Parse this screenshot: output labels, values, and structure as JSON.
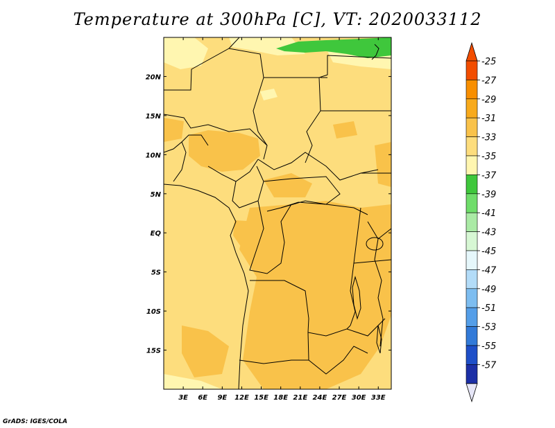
{
  "title": "Temperature at 300hPa [C], VT: 2020033112",
  "credit": "GrADS: IGES/COLA",
  "chart_data": {
    "type": "heatmap",
    "title": "Temperature at 300hPa [C], VT: 2020033112",
    "x_axis": {
      "range": [
        0,
        35
      ],
      "ticks": [
        3,
        6,
        9,
        12,
        15,
        18,
        21,
        24,
        27,
        30,
        33
      ],
      "tick_labels": [
        "3E",
        "6E",
        "9E",
        "12E",
        "15E",
        "18E",
        "21E",
        "24E",
        "27E",
        "30E",
        "33E"
      ]
    },
    "y_axis": {
      "range": [
        -20,
        25
      ],
      "ticks": [
        20,
        15,
        10,
        5,
        0,
        -5,
        -10,
        -15
      ],
      "tick_labels": [
        "20N",
        "15N",
        "10N",
        "5N",
        "EQ",
        "5S",
        "10S",
        "15S"
      ]
    },
    "colorbar": {
      "levels": [
        -25,
        -27,
        -29,
        -31,
        -33,
        -35,
        -37,
        -39,
        -41,
        -43,
        -45,
        -47,
        -49,
        -51,
        -53,
        -55,
        -57
      ],
      "labels": [
        "-25",
        "-27",
        "-29",
        "-31",
        "-33",
        "-35",
        "-37",
        "-39",
        "-41",
        "-43",
        "-45",
        "-47",
        "-49",
        "-51",
        "-53",
        "-55",
        "-57"
      ],
      "colors": [
        "#f24d00",
        "#f88f00",
        "#f8aa1c",
        "#f9c24a",
        "#fddd7d",
        "#fff6b0",
        "#3fc73c",
        "#6fdd6a",
        "#aaeaa5",
        "#d7f7d4",
        "#e6f7fb",
        "#b3dcf8",
        "#7dbdf0",
        "#549ee8",
        "#327ad8",
        "#1e4fc8",
        "#1c2fa6",
        "#0f1a7a"
      ],
      "top_arrow_color": "#f24d00",
      "bottom_arrow_color": "#e6e6f7"
    },
    "field_colors": {
      "base": "#fddd7d",
      "warm": "#f9c24a",
      "cool": "#fff6b0",
      "cold": "#3fc73c"
    }
  }
}
